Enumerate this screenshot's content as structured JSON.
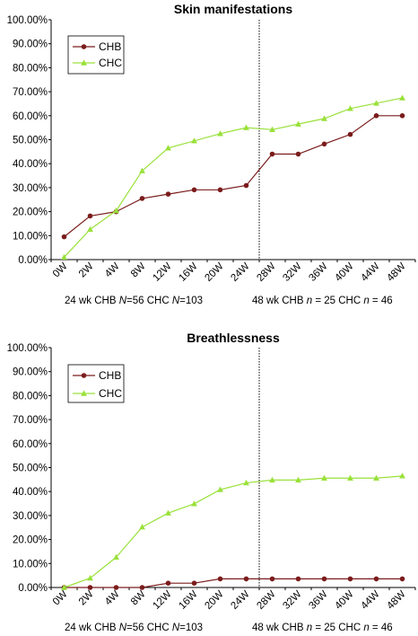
{
  "colors": {
    "chb": "#7b1c1c",
    "chc": "#99e13a",
    "divider": "#000000"
  },
  "legend": [
    "CHB",
    "CHC"
  ],
  "notes": {
    "left_prefix": "24 wk CHB ",
    "left_n1": "N",
    "left_mid": "=56  CHC ",
    "left_n2": "N",
    "left_suffix": "=103",
    "right_prefix": "48 wk  CHB ",
    "right_n1": "n",
    "right_mid": " = 25  CHC ",
    "right_n2": "n",
    "right_suffix": " = 46"
  },
  "chart_data": [
    {
      "type": "line",
      "title": "Skin manifestations",
      "categories": [
        "0W",
        "2W",
        "4W",
        "8W",
        "12W",
        "16W",
        "20W",
        "24W",
        "28W",
        "32W",
        "36W",
        "40W",
        "44W",
        "48W"
      ],
      "yticks": [
        "0.00%",
        "10.00%",
        "20.00%",
        "30.00%",
        "40.00%",
        "50.00%",
        "60.00%",
        "70.00%",
        "80.00%",
        "90.00%",
        "100.00%"
      ],
      "ylim": [
        0,
        100
      ],
      "divider_after": "24W",
      "series": [
        {
          "name": "CHB",
          "values": [
            9.5,
            18.2,
            20.0,
            25.5,
            27.3,
            29.1,
            29.1,
            30.9,
            44.0,
            44.0,
            48.2,
            52.2,
            60.0,
            60.0
          ]
        },
        {
          "name": "CHC",
          "values": [
            1.0,
            12.6,
            20.4,
            37.0,
            46.5,
            49.5,
            52.5,
            55.0,
            54.2,
            56.5,
            58.8,
            63.0,
            65.2,
            67.4
          ]
        }
      ]
    },
    {
      "type": "line",
      "title": "Breathlessness",
      "categories": [
        "0W",
        "2W",
        "4W",
        "8W",
        "12W",
        "16W",
        "20W",
        "24W",
        "28W",
        "32W",
        "36W",
        "40W",
        "44W",
        "48W"
      ],
      "yticks": [
        "0.00%",
        "10.00%",
        "20.00%",
        "30.00%",
        "40.00%",
        "50.00%",
        "60.00%",
        "70.00%",
        "80.00%",
        "90.00%",
        "100.00%"
      ],
      "ylim": [
        0,
        100
      ],
      "divider_after": "24W",
      "series": [
        {
          "name": "CHB",
          "values": [
            0.0,
            0.0,
            0.0,
            0.0,
            1.8,
            1.8,
            3.6,
            3.6,
            3.6,
            3.6,
            3.6,
            3.6,
            3.6,
            3.6
          ]
        },
        {
          "name": "CHC",
          "values": [
            0.0,
            3.9,
            12.6,
            25.2,
            31.0,
            34.9,
            40.8,
            43.6,
            44.8,
            44.8,
            45.6,
            45.6,
            45.6,
            46.5
          ]
        }
      ]
    }
  ]
}
